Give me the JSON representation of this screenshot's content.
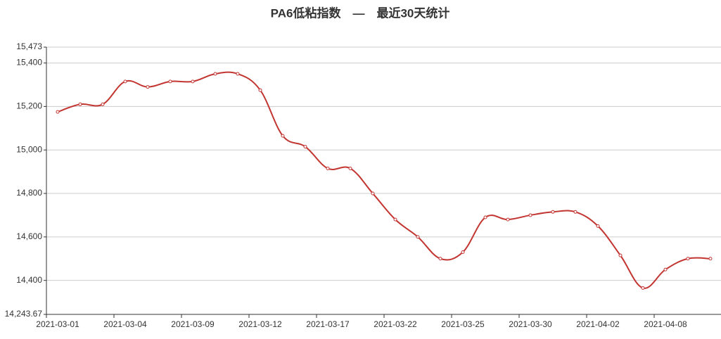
{
  "chart_data": {
    "type": "line",
    "title": "PA6低粘指数　—　最近30天统计",
    "categories": [
      "2021-03-01",
      null,
      null,
      "2021-03-04",
      null,
      null,
      "2021-03-09",
      null,
      null,
      "2021-03-12",
      null,
      null,
      "2021-03-17",
      null,
      null,
      "2021-03-22",
      null,
      null,
      "2021-03-25",
      null,
      null,
      "2021-03-30",
      null,
      null,
      "2021-04-02",
      null,
      null,
      "2021-04-08",
      null,
      null
    ],
    "series": [
      {
        "color": "#c23531",
        "values": [
          15175,
          15210,
          15210,
          15315,
          15290,
          15315,
          15315,
          15350,
          15350,
          15275,
          15065,
          15015,
          14915,
          14915,
          14800,
          14680,
          14600,
          14500,
          14530,
          14690,
          14680,
          14700,
          14715,
          14715,
          14650,
          14515,
          14365,
          14450,
          14500,
          14500
        ]
      }
    ],
    "ylim": [
      14243.67,
      15473
    ],
    "yticks": [
      {
        "value": 14243.67,
        "label": "14,243.67"
      },
      {
        "value": 14400,
        "label": "14,400"
      },
      {
        "value": 14600,
        "label": "14,600"
      },
      {
        "value": 14800,
        "label": "14,800"
      },
      {
        "value": 15000,
        "label": "15,000"
      },
      {
        "value": 15200,
        "label": "15,200"
      },
      {
        "value": 15400,
        "label": "15,400"
      },
      {
        "value": 15473,
        "label": "15,473"
      }
    ],
    "grid": true
  }
}
